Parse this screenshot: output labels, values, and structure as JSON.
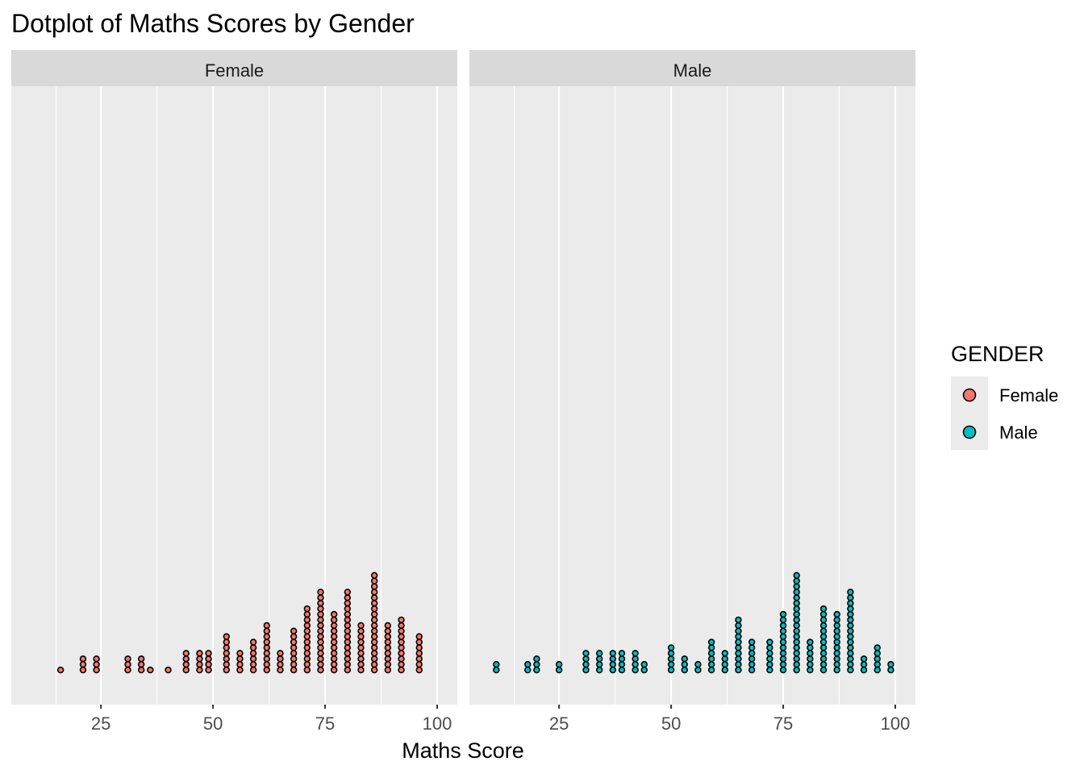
{
  "chart_data": {
    "type": "dotplot",
    "title": "Dotplot of Maths Scores by Gender",
    "xlabel": "Maths Score",
    "ylabel": "",
    "xlim": [
      5,
      104.5
    ],
    "x_ticks": [
      25,
      50,
      75,
      100
    ],
    "x_tick_labels": [
      "25",
      "50",
      "75",
      "100"
    ],
    "grid": true,
    "legend": {
      "title": "GENDER",
      "position": "right",
      "entries": [
        {
          "label": "Female",
          "color": "#F8766D"
        },
        {
          "label": "Male",
          "color": "#00BFC4"
        }
      ]
    },
    "panels": [
      {
        "label": "Female",
        "color": "#F8766D",
        "bins": [
          {
            "x": 16,
            "count": 1
          },
          {
            "x": 21,
            "count": 3
          },
          {
            "x": 24,
            "count": 3
          },
          {
            "x": 31,
            "count": 3
          },
          {
            "x": 34,
            "count": 3
          },
          {
            "x": 36,
            "count": 1
          },
          {
            "x": 40,
            "count": 1
          },
          {
            "x": 44,
            "count": 4
          },
          {
            "x": 47,
            "count": 4
          },
          {
            "x": 49,
            "count": 4
          },
          {
            "x": 53,
            "count": 7
          },
          {
            "x": 56,
            "count": 4
          },
          {
            "x": 59,
            "count": 6
          },
          {
            "x": 62,
            "count": 9
          },
          {
            "x": 65,
            "count": 4
          },
          {
            "x": 68,
            "count": 8
          },
          {
            "x": 71,
            "count": 12
          },
          {
            "x": 74,
            "count": 15
          },
          {
            "x": 77,
            "count": 11
          },
          {
            "x": 80,
            "count": 15
          },
          {
            "x": 83,
            "count": 9
          },
          {
            "x": 86,
            "count": 18
          },
          {
            "x": 89,
            "count": 9
          },
          {
            "x": 92,
            "count": 10
          },
          {
            "x": 96,
            "count": 7
          }
        ]
      },
      {
        "label": "Male",
        "color": "#00BFC4",
        "bins": [
          {
            "x": 11,
            "count": 2
          },
          {
            "x": 18,
            "count": 2
          },
          {
            "x": 20,
            "count": 3
          },
          {
            "x": 25,
            "count": 2
          },
          {
            "x": 31,
            "count": 4
          },
          {
            "x": 34,
            "count": 4
          },
          {
            "x": 37,
            "count": 4
          },
          {
            "x": 39,
            "count": 4
          },
          {
            "x": 42,
            "count": 4
          },
          {
            "x": 44,
            "count": 2
          },
          {
            "x": 50,
            "count": 5
          },
          {
            "x": 53,
            "count": 3
          },
          {
            "x": 56,
            "count": 2
          },
          {
            "x": 59,
            "count": 6
          },
          {
            "x": 62,
            "count": 4
          },
          {
            "x": 65,
            "count": 10
          },
          {
            "x": 68,
            "count": 6
          },
          {
            "x": 72,
            "count": 6
          },
          {
            "x": 75,
            "count": 11
          },
          {
            "x": 78,
            "count": 18
          },
          {
            "x": 81,
            "count": 6
          },
          {
            "x": 84,
            "count": 12
          },
          {
            "x": 87,
            "count": 11
          },
          {
            "x": 90,
            "count": 15
          },
          {
            "x": 93,
            "count": 3
          },
          {
            "x": 96,
            "count": 5
          },
          {
            "x": 99,
            "count": 2
          }
        ]
      }
    ]
  }
}
